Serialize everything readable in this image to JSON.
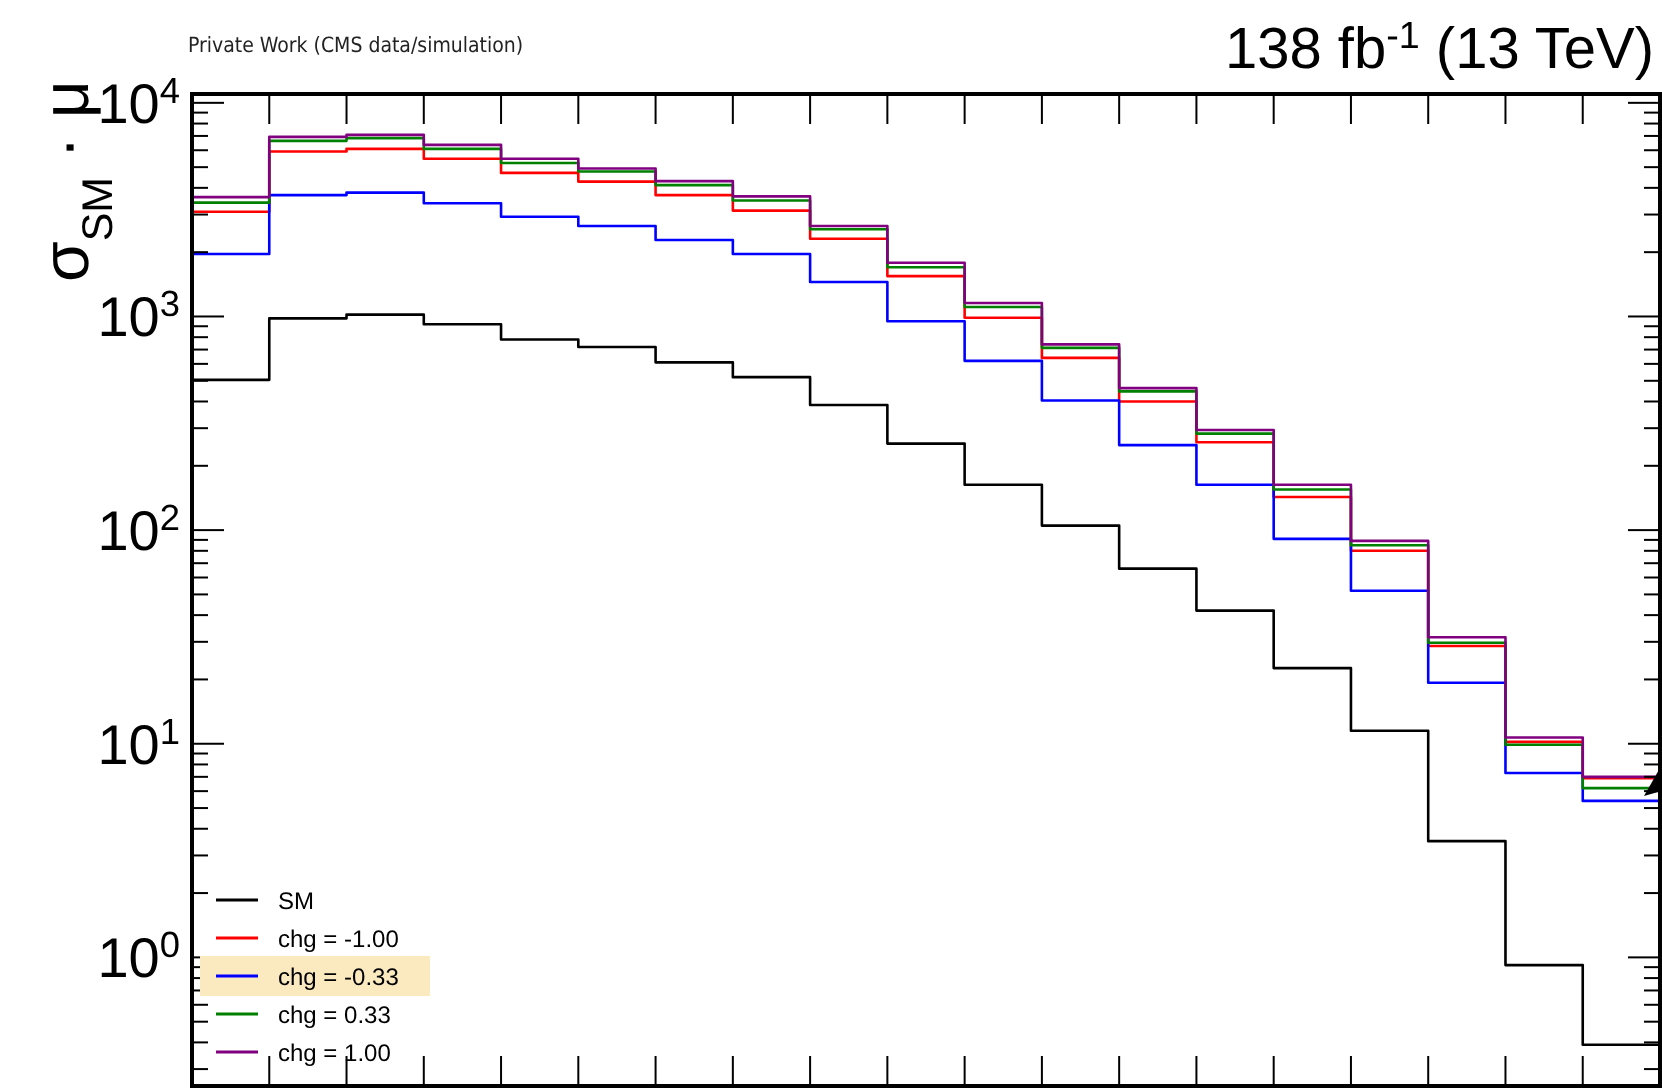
{
  "chart_data": {
    "type": "step",
    "title": "138 fb$^{-1}$ (13 TeV)",
    "ylabel": "σ$_{SM}$ · μ",
    "annotations": [
      "Private Work (CMS data/simulation)"
    ],
    "categories": [
      null,
      null,
      null,
      null,
      null,
      null,
      null,
      null,
      null,
      null,
      null,
      null,
      null,
      null,
      null,
      null,
      null,
      null,
      null,
      null
    ],
    "series": [
      {
        "name": "SM",
        "color": "#000000",
        "values": [
          505,
          980,
          1020,
          920,
          780,
          720,
          610,
          520,
          385,
          254,
          163,
          105,
          66,
          42,
          22.6,
          11.5,
          3.5,
          0.92,
          0.39,
          0.39
        ]
      },
      {
        "name": "chg = -1.00",
        "color": "#ff0000",
        "values": [
          3090,
          5920,
          6090,
          5470,
          4700,
          4280,
          3700,
          3130,
          2310,
          1545,
          986,
          640,
          400,
          258,
          143,
          80,
          28.7,
          10.2,
          6.9,
          6.9
        ]
      },
      {
        "name": "chg = -0.33",
        "color": "#0000ff",
        "values": [
          1960,
          3700,
          3800,
          3390,
          2930,
          2650,
          2280,
          1960,
          1450,
          950,
          620,
          404,
          250,
          163,
          91,
          52,
          19.3,
          7.3,
          5.4,
          5.4
        ]
      },
      {
        "name": "chg = 0.33",
        "color": "#008000",
        "values": [
          3410,
          6640,
          6840,
          6090,
          5230,
          4770,
          4120,
          3490,
          2560,
          1700,
          1107,
          713,
          446,
          283,
          155,
          85,
          29.7,
          9.9,
          6.2,
          6.2
        ]
      },
      {
        "name": "chg = 1.00",
        "color": "#800080",
        "values": [
          3620,
          6930,
          7080,
          6360,
          5470,
          4930,
          4300,
          3650,
          2650,
          1785,
          1156,
          740,
          462,
          294,
          163,
          89,
          31.5,
          10.7,
          7.0,
          7.0
        ]
      }
    ],
    "log": "y",
    "ylim": [
      0.25,
      11000
    ],
    "yticks": [
      {
        "value": 0.3,
        "label": null
      },
      {
        "value": 0.4,
        "label": null
      },
      {
        "value": 0.5,
        "label": null
      },
      {
        "value": 0.6,
        "label": null
      },
      {
        "value": 0.7,
        "label": null
      },
      {
        "value": 0.8,
        "label": null
      },
      {
        "value": 0.9,
        "label": null
      },
      {
        "value": 1,
        "label": "10$^{0}$"
      },
      {
        "value": 2,
        "label": null
      },
      {
        "value": 3,
        "label": null
      },
      {
        "value": 4,
        "label": null
      },
      {
        "value": 5,
        "label": null
      },
      {
        "value": 6,
        "label": null
      },
      {
        "value": 7,
        "label": null
      },
      {
        "value": 8,
        "label": null
      },
      {
        "value": 9,
        "label": null
      },
      {
        "value": 10,
        "label": "10$^{1}$"
      },
      {
        "value": 20,
        "label": null
      },
      {
        "value": 30,
        "label": null
      },
      {
        "value": 40,
        "label": null
      },
      {
        "value": 50,
        "label": null
      },
      {
        "value": 60,
        "label": null
      },
      {
        "value": 70,
        "label": null
      },
      {
        "value": 80,
        "label": null
      },
      {
        "value": 90,
        "label": null
      },
      {
        "value": 100,
        "label": "10$^{2}$"
      },
      {
        "value": 200,
        "label": null
      },
      {
        "value": 300,
        "label": null
      },
      {
        "value": 400,
        "label": null
      },
      {
        "value": 500,
        "label": null
      },
      {
        "value": 600,
        "label": null
      },
      {
        "value": 700,
        "label": null
      },
      {
        "value": 800,
        "label": null
      },
      {
        "value": 900,
        "label": null
      },
      {
        "value": 1000,
        "label": "10$^{3}$"
      },
      {
        "value": 2000,
        "label": null
      },
      {
        "value": 3000,
        "label": null
      },
      {
        "value": 4000,
        "label": null
      },
      {
        "value": 5000,
        "label": null
      },
      {
        "value": 6000,
        "label": null
      },
      {
        "value": 7000,
        "label": null
      },
      {
        "value": 8000,
        "label": null
      },
      {
        "value": 9000,
        "label": null
      },
      {
        "value": 10000,
        "label": "10$^{4}$"
      }
    ],
    "tick_labels": "y",
    "legend": "bottom left",
    "grid": false,
    "line_style": "solid",
    "marker": "none"
  }
}
